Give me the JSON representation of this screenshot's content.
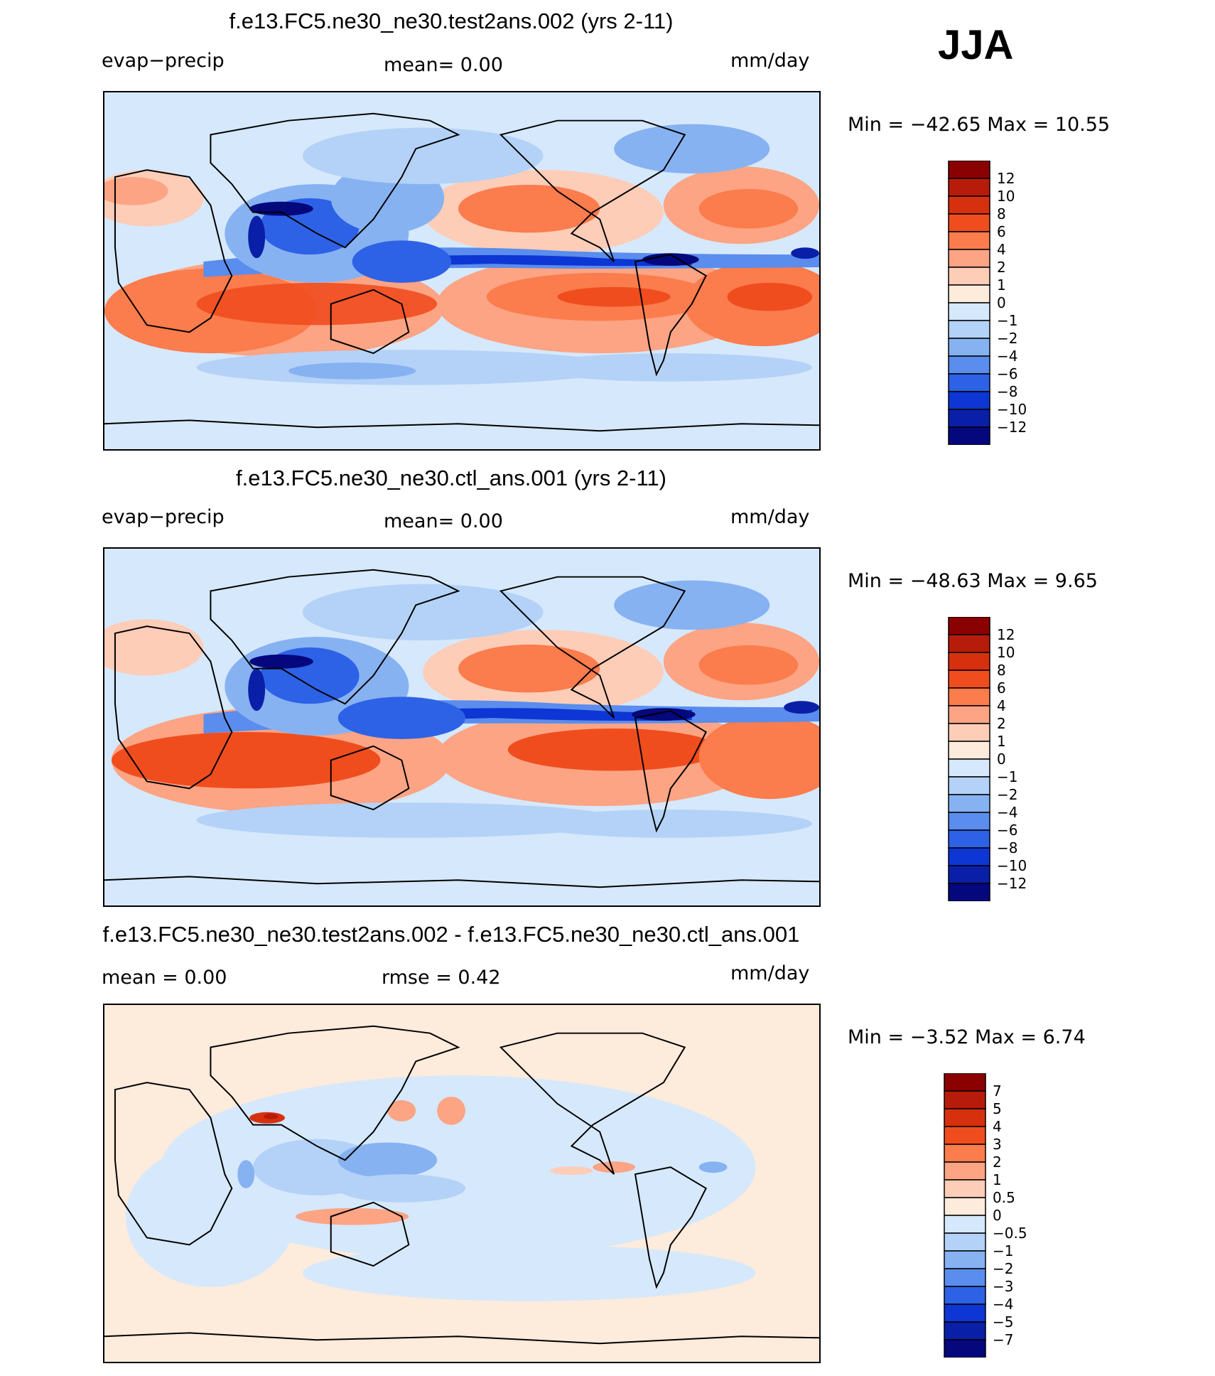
{
  "season": "JJA",
  "colors": {
    "ocean_base": "#d6e8fb",
    "land_line": "#000000"
  },
  "panels": [
    {
      "title": "f.e13.FC5.ne30_ne30.test2ans.002 (yrs 2-11)",
      "left_label": "evap−precip",
      "mid_label": "mean=     0.00",
      "right_label": "mm/day",
      "stats": "Min  =  −42.65  Max  =    10.55",
      "legend": [
        "12",
        "10",
        "8",
        "6",
        "4",
        "2",
        "1",
        "0",
        "−1",
        "−2",
        "−4",
        "−6",
        "−8",
        "−10",
        "−12"
      ],
      "colors": [
        "#8b0000",
        "#b71c0b",
        "#d7300f",
        "#f04d1f",
        "#fb7c4c",
        "#fca484",
        "#fdcdb8",
        "#fdebdc",
        "#d6e8fb",
        "#b4d2f7",
        "#87b2f2",
        "#5a8ded",
        "#2d62e6",
        "#0d36d4",
        "#0a1fa8",
        "#05087c"
      ]
    },
    {
      "title": "f.e13.FC5.ne30_ne30.ctl_ans.001 (yrs 2-11)",
      "left_label": "evap−precip",
      "mid_label": "mean=     0.00",
      "right_label": "mm/day",
      "stats": "Min  =  −48.63  Max  =     9.65",
      "legend": [
        "12",
        "10",
        "8",
        "6",
        "4",
        "2",
        "1",
        "0",
        "−1",
        "−2",
        "−4",
        "−6",
        "−8",
        "−10",
        "−12"
      ],
      "colors": [
        "#8b0000",
        "#b71c0b",
        "#d7300f",
        "#f04d1f",
        "#fb7c4c",
        "#fca484",
        "#fdcdb8",
        "#fdebdc",
        "#d6e8fb",
        "#b4d2f7",
        "#87b2f2",
        "#5a8ded",
        "#2d62e6",
        "#0d36d4",
        "#0a1fa8",
        "#05087c"
      ]
    },
    {
      "title": "f.e13.FC5.ne30_ne30.test2ans.002 - f.e13.FC5.ne30_ne30.ctl_ans.001",
      "left_label": "mean  =      0.00",
      "mid_label": "rmse  =      0.42",
      "right_label": "mm/day",
      "stats": "Min  =     −3.52  Max  =     6.74",
      "legend": [
        "7",
        "5",
        "4",
        "3",
        "2",
        "1",
        "0.5",
        "0",
        "−0.5",
        "−1",
        "−2",
        "−3",
        "−4",
        "−5",
        "−7"
      ],
      "colors": [
        "#8b0000",
        "#b71c0b",
        "#d7300f",
        "#f04d1f",
        "#fb7c4c",
        "#fca484",
        "#fdcdb8",
        "#fdebdc",
        "#d6e8fb",
        "#b4d2f7",
        "#87b2f2",
        "#5a8ded",
        "#2d62e6",
        "#0d36d4",
        "#0a1fa8",
        "#05087c"
      ]
    }
  ],
  "chart_data": [
    {
      "type": "heatmap",
      "title": "f.e13.FC5.ne30_ne30.test2ans.002 (yrs 2-11)",
      "variable": "evap−precip",
      "units": "mm/day",
      "mean": 0.0,
      "min": -42.65,
      "max": 10.55,
      "contour_levels": [
        -12,
        -10,
        -8,
        -6,
        -4,
        -2,
        -1,
        0,
        1,
        2,
        4,
        6,
        8,
        10,
        12
      ]
    },
    {
      "type": "heatmap",
      "title": "f.e13.FC5.ne30_ne30.ctl_ans.001 (yrs 2-11)",
      "variable": "evap−precip",
      "units": "mm/day",
      "mean": 0.0,
      "min": -48.63,
      "max": 9.65,
      "contour_levels": [
        -12,
        -10,
        -8,
        -6,
        -4,
        -2,
        -1,
        0,
        1,
        2,
        4,
        6,
        8,
        10,
        12
      ]
    },
    {
      "type": "heatmap",
      "title": "f.e13.FC5.ne30_ne30.test2ans.002 - f.e13.FC5.ne30_ne30.ctl_ans.001",
      "units": "mm/day",
      "mean": 0.0,
      "rmse": 0.42,
      "min": -3.52,
      "max": 6.74,
      "contour_levels": [
        -7,
        -5,
        -4,
        -3,
        -2,
        -1,
        -0.5,
        0,
        0.5,
        1,
        2,
        3,
        4,
        5,
        7
      ]
    }
  ]
}
